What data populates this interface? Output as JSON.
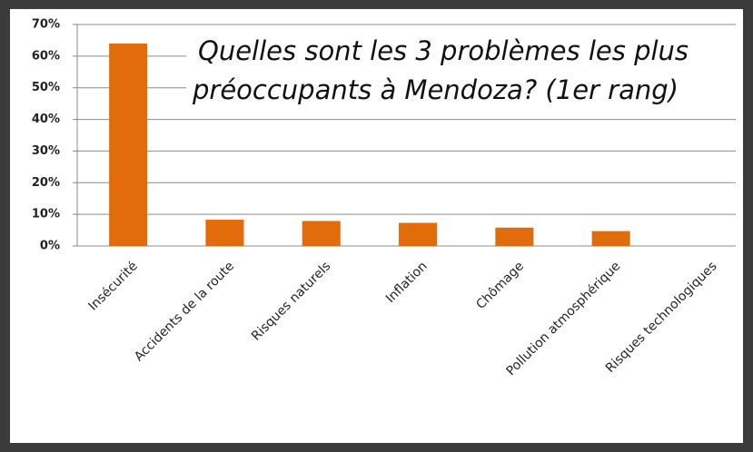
{
  "chart_data": {
    "type": "bar",
    "title": [
      "Quelles sont les 3 problèmes les plus",
      "préoccupants à Mendoza? (1er rang)"
    ],
    "categories": [
      "Insécurité",
      "Accidents de la route",
      "Risques naturels",
      "Inflation",
      "Chômage",
      "Pollution atmosphérique",
      "Risques technologiques"
    ],
    "values": [
      64,
      8.3,
      7.9,
      7.3,
      5.8,
      4.7,
      0
    ],
    "color": "#e36c0a",
    "ylim": [
      0,
      70
    ],
    "yticks": [
      {
        "value": 0,
        "label": "0%"
      },
      {
        "value": 10,
        "label": "10%"
      },
      {
        "value": 20,
        "label": "20%"
      },
      {
        "value": 30,
        "label": "30%"
      },
      {
        "value": 40,
        "label": "40%"
      },
      {
        "value": 50,
        "label": "50%"
      },
      {
        "value": 60,
        "label": "60%"
      },
      {
        "value": 70,
        "label": "70%"
      }
    ],
    "grid": true
  }
}
